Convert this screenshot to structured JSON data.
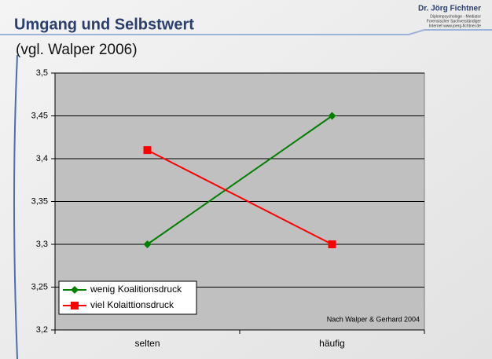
{
  "logo": {
    "name": "Dr. Jörg Fichtner",
    "lines": [
      "Diplompsychologe  -  Mediator",
      "Forensischer Sachverständiger",
      "Internet www.joerg-fichtner.de"
    ]
  },
  "chart_data": {
    "type": "line",
    "title": "Umgang und Selbstwert",
    "subtitle": "(vgl. Walper 2006)",
    "annotation": "Nach Walper & Gerhard 2004",
    "categories": [
      "selten",
      "häufig"
    ],
    "series": [
      {
        "name": "wenig Koalitionsdruck",
        "color": "#008000",
        "marker": "diamond",
        "values": [
          3.3,
          3.45
        ]
      },
      {
        "name": "viel Kolaittionsdruck",
        "color": "#ff0000",
        "marker": "square",
        "values": [
          3.41,
          3.3
        ]
      }
    ],
    "ylim": [
      3.2,
      3.5
    ],
    "yticks": [
      {
        "value": 3.2,
        "label": "3,2"
      },
      {
        "value": 3.25,
        "label": "3,25"
      },
      {
        "value": 3.3,
        "label": "3,3"
      },
      {
        "value": 3.35,
        "label": "3,35"
      },
      {
        "value": 3.4,
        "label": "3,4"
      },
      {
        "value": 3.45,
        "label": "3,45"
      },
      {
        "value": 3.5,
        "label": "3,5"
      }
    ],
    "grid": true,
    "legend": "bottom-left",
    "background": "#c0c0c0"
  }
}
